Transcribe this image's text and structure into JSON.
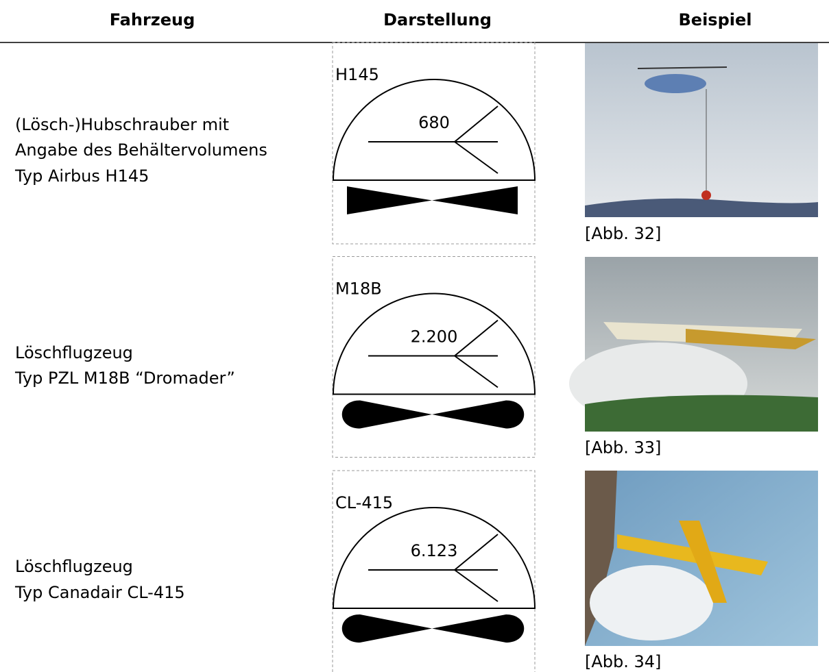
{
  "table": {
    "headers": [
      "Fahrzeug",
      "Darstellung",
      "Beispiel"
    ],
    "rows": [
      {
        "vehicle": [
          "(Lösch-)Hubschrauber mit",
          "Angabe des Behältervolumens",
          "Typ Airbus H145"
        ],
        "symbol": {
          "label": "H145",
          "volume": "680"
        },
        "caption": "[Abb. 32]"
      },
      {
        "vehicle": [
          "Löschflugzeug",
          "Typ PZL M18B “Dromader”"
        ],
        "symbol": {
          "label": "M18B",
          "volume": "2.200"
        },
        "caption": "[Abb. 33]"
      },
      {
        "vehicle": [
          "Löschflugzeug",
          "Typ Canadair CL-415"
        ],
        "symbol": {
          "label": "CL-415",
          "volume": "6.123"
        },
        "caption": "[Abb. 34]"
      }
    ]
  }
}
